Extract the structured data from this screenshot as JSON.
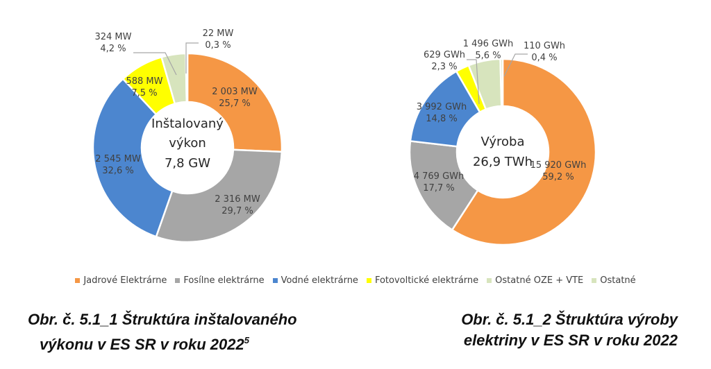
{
  "colors": {
    "Jadrové Elektrárne": "#F59745",
    "Fosílne elektrárne": "#A6A6A6",
    "Vodné elektrárne": "#4C86CF",
    "Fotovoltické elektrárne": "#FFFF00",
    "Ostatné OZE + VTE": "#D7E4BD",
    "Ostatné": "#D7E4BD"
  },
  "legend": [
    "Jadrové Elektrárne",
    "Fosílne elektrárne",
    "Vodné elektrárne",
    "Fotovoltické elektrárne",
    "Ostatné OZE + VTE",
    "Ostatné"
  ],
  "chart_data": [
    {
      "type": "pie",
      "center_text": [
        "Inštalovaný",
        "výkon",
        "7,8 GW"
      ],
      "categories": [
        "Jadrové Elektrárne",
        "Fosílne elektrárne",
        "Vodné elektrárne",
        "Fotovoltické elektrárne",
        "Ostatné OZE + VTE",
        "Ostatné"
      ],
      "values": [
        2003,
        2316,
        2545,
        588,
        324,
        22
      ],
      "value_labels": [
        "2 003 MW",
        "2 316 MW",
        "2 545 MW",
        "588  MW",
        "324 MW",
        "22 MW"
      ],
      "percent_labels": [
        "25,7 %",
        "29,7 %",
        "32,6 %",
        "7,5 %",
        "4,2 %",
        "0,3 %"
      ]
    },
    {
      "type": "pie",
      "center_text": [
        "Výroba",
        "26,9 TWh"
      ],
      "categories": [
        "Jadrové Elektrárne",
        "Fosílne elektrárne",
        "Vodné elektrárne",
        "Fotovoltické elektrárne",
        "Ostatné OZE + VTE",
        "Ostatné"
      ],
      "values": [
        15920,
        4769,
        3992,
        629,
        1496,
        110
      ],
      "value_labels": [
        "15 920 GWh",
        "4 769 GWh",
        "3 992 GWh",
        "629 GWh",
        "1 496 GWh",
        "110 GWh"
      ],
      "percent_labels": [
        "59,2 %",
        "17,7 %",
        "14,8 %",
        "2,3 %",
        "5,6 %",
        "0,4 %"
      ]
    }
  ],
  "captions": {
    "left_line1": "Obr. č. 5.1_1  Štruktúra inštalovaného",
    "left_line2": "výkonu v ES SR v roku 2022",
    "left_sup": "5",
    "right_line1": "Obr. č. 5.1_2  Štruktúra výroby",
    "right_line2": "elektriny v ES SR v roku 2022"
  }
}
